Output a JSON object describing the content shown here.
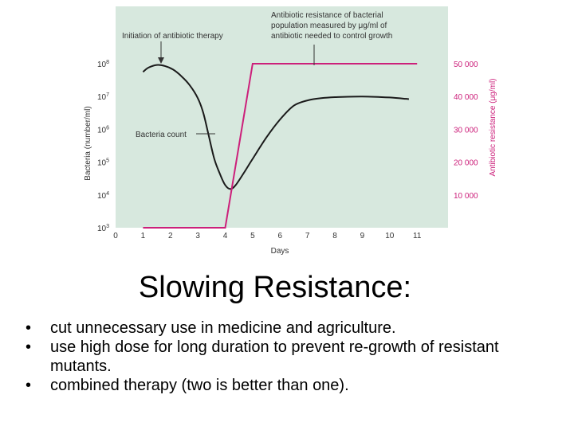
{
  "chart_data": {
    "type": "line",
    "xlabel": "Days",
    "x_ticks": [
      "0",
      "1",
      "2",
      "3",
      "4",
      "5",
      "6",
      "7",
      "8",
      "9",
      "10",
      "11"
    ],
    "xlim": [
      0,
      11
    ],
    "y_left": {
      "label": "Bacteria (number/ml)",
      "scale": "log",
      "ticks": [
        {
          "base": "10",
          "exp": "3"
        },
        {
          "base": "10",
          "exp": "4"
        },
        {
          "base": "10",
          "exp": "5"
        },
        {
          "base": "10",
          "exp": "6"
        },
        {
          "base": "10",
          "exp": "7"
        },
        {
          "base": "10",
          "exp": "8"
        }
      ],
      "ylim_log10": [
        3,
        8
      ]
    },
    "y_right": {
      "label": "Antibiotic resistance (μg/ml)",
      "ticks": [
        "10 000",
        "20 000",
        "30 000",
        "40 000",
        "50 000"
      ],
      "ylim": [
        0,
        50000
      ]
    },
    "series": [
      {
        "name": "Bacteria count",
        "axis": "left",
        "color": "#1a1a1a",
        "log10_values": [
          [
            1,
            7.75
          ],
          [
            1.2,
            7.88
          ],
          [
            1.5,
            7.96
          ],
          [
            1.8,
            7.93
          ],
          [
            2.1,
            7.82
          ],
          [
            2.4,
            7.62
          ],
          [
            2.7,
            7.35
          ],
          [
            3.0,
            6.95
          ],
          [
            3.2,
            6.5
          ],
          [
            3.4,
            5.8
          ],
          [
            3.6,
            5.1
          ],
          [
            3.8,
            4.65
          ],
          [
            4.0,
            4.3
          ],
          [
            4.2,
            4.18
          ],
          [
            4.4,
            4.32
          ],
          [
            4.7,
            4.7
          ],
          [
            5.0,
            5.1
          ],
          [
            5.5,
            5.75
          ],
          [
            6.0,
            6.3
          ],
          [
            6.5,
            6.72
          ],
          [
            7.0,
            6.88
          ],
          [
            7.5,
            6.95
          ],
          [
            8.0,
            6.98
          ],
          [
            9.0,
            7.0
          ],
          [
            10.0,
            6.97
          ],
          [
            10.7,
            6.92
          ]
        ]
      },
      {
        "name": "Antibiotic resistance",
        "axis": "right",
        "color": "#cc1f7a",
        "values": [
          [
            1,
            0
          ],
          [
            4,
            0
          ],
          [
            5,
            50000
          ],
          [
            11,
            50000
          ]
        ]
      }
    ],
    "annotations": [
      {
        "name": "initiation",
        "text": [
          "Initiation of antibiotic therapy"
        ]
      },
      {
        "name": "bacteria-count",
        "text": [
          "Bacteria count"
        ]
      },
      {
        "name": "resistance",
        "text": [
          "Antibiotic resistance of bacterial",
          "population measured by μg/ml of",
          "antibiotic needed to control growth"
        ]
      }
    ],
    "colors": {
      "plot_bg": "#d7e8de",
      "resistance": "#cc1f7a",
      "bacteria": "#1a1a1a"
    }
  },
  "slide": {
    "title": "Slowing Resistance:",
    "bullet_symbol": "•",
    "bullets": [
      "cut unnecessary use in medicine and agriculture.",
      "use high dose for long duration to prevent re-growth of resistant mutants.",
      "combined therapy (two is better than one)."
    ]
  }
}
